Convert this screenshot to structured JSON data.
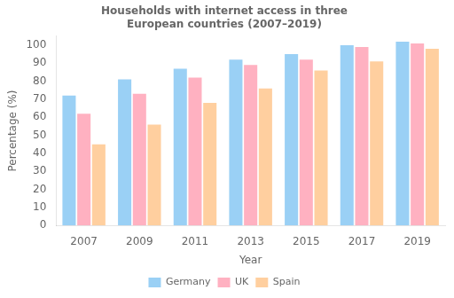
{
  "chart_data": {
    "type": "bar",
    "title": "Households with internet access in three\nEuropean countries (2007–2019)",
    "xlabel": "Year",
    "ylabel": "Percentage (%)",
    "categories": [
      "2007",
      "2009",
      "2011",
      "2013",
      "2015",
      "2017",
      "2019"
    ],
    "series": [
      {
        "name": "Germany",
        "values": [
          72,
          81,
          87,
          92,
          95,
          100,
          102
        ]
      },
      {
        "name": "UK",
        "values": [
          62,
          73,
          82,
          89,
          92,
          99,
          101
        ]
      },
      {
        "name": "Spain",
        "values": [
          45,
          56,
          68,
          76,
          86,
          91,
          98
        ]
      }
    ],
    "ylim": [
      0,
      105
    ],
    "yticks": [
      0,
      10,
      20,
      30,
      40,
      50,
      60,
      70,
      80,
      90,
      100
    ],
    "grid": false,
    "legend": "bottom"
  }
}
